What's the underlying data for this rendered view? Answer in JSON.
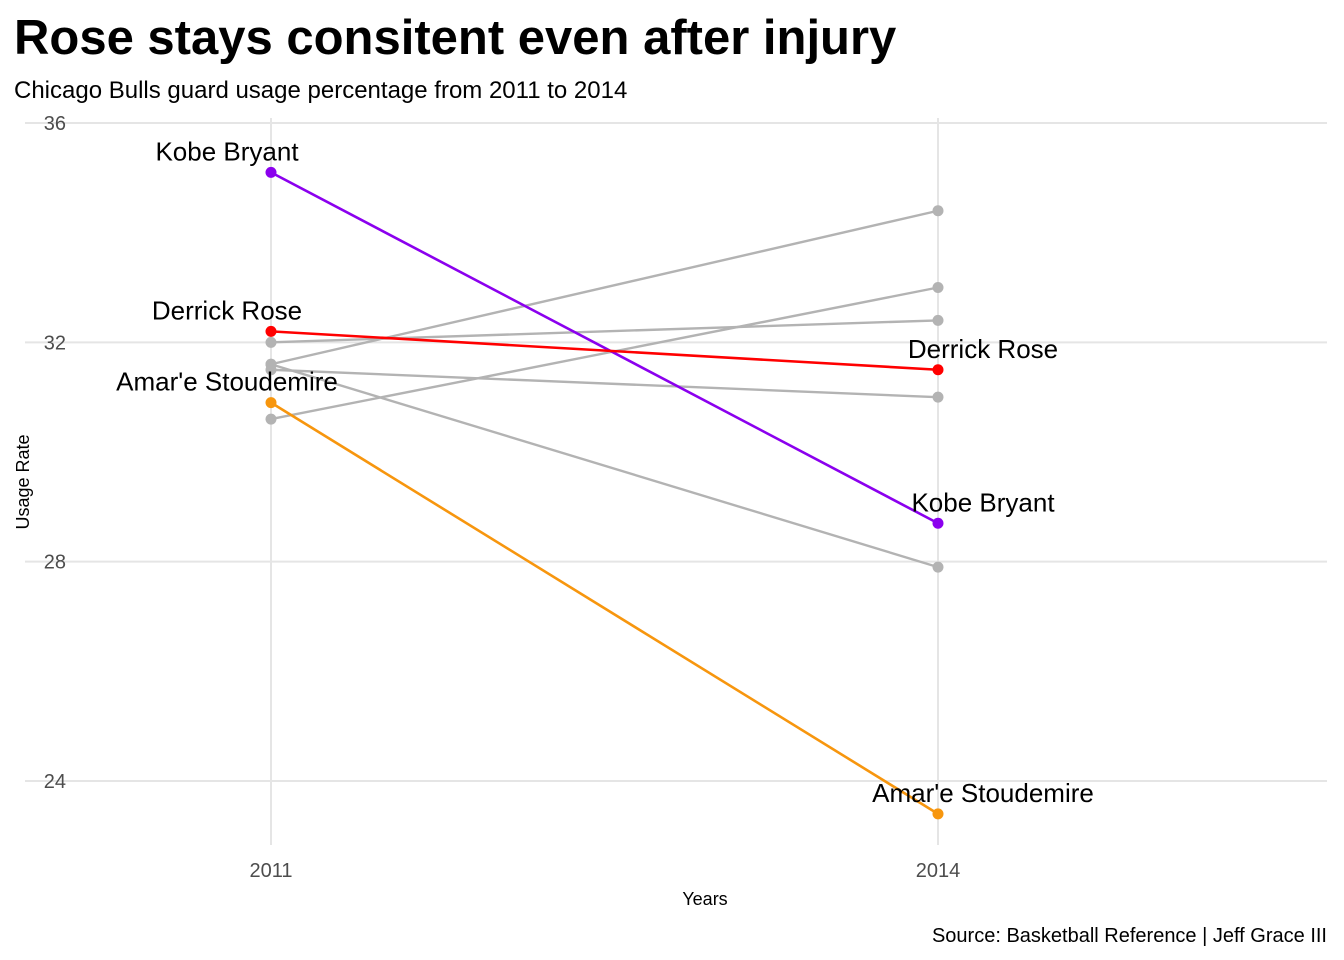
{
  "chart_data": {
    "type": "line",
    "title": "Rose stays consitent even after injury",
    "subtitle": "Chicago Bulls guard usage percentage from 2011 to 2014",
    "caption": "Source: Basketball Reference | Jeff Grace III",
    "xlabel": "Years",
    "ylabel": "Usage Rate",
    "categories": [
      "2011",
      "2014"
    ],
    "yticks": [
      24,
      28,
      32,
      36
    ],
    "ylim": [
      22.8,
      36
    ],
    "grid": true,
    "legend": "none",
    "series": [
      {
        "name": "Kobe Bryant",
        "values": [
          35.1,
          28.7
        ],
        "color": "#8b00ee",
        "highlight": true
      },
      {
        "name": "Derrick Rose",
        "values": [
          32.2,
          31.5
        ],
        "color": "#ff0000",
        "highlight": true
      },
      {
        "name": "Amar'e Stoudemire",
        "values": [
          30.9,
          23.4
        ],
        "color": "#f7960e",
        "highlight": true
      },
      {
        "values": [
          32.0,
          32.4
        ],
        "color": "#b3b3b3",
        "highlight": false
      },
      {
        "values": [
          31.6,
          34.4
        ],
        "color": "#b3b3b3",
        "highlight": false
      },
      {
        "values": [
          30.6,
          33.0
        ],
        "color": "#b3b3b3",
        "highlight": false
      },
      {
        "values": [
          31.5,
          31.0
        ],
        "color": "#b3b3b3",
        "highlight": false
      },
      {
        "values": [
          31.6,
          27.9
        ],
        "color": "#b3b3b3",
        "highlight": false
      }
    ]
  }
}
